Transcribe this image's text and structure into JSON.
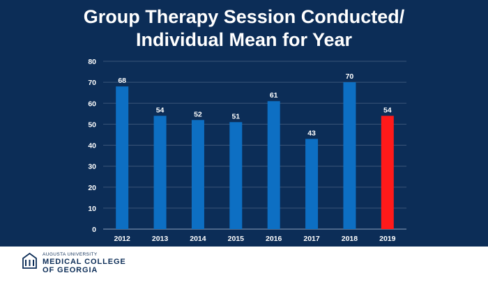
{
  "title": {
    "line1": "Group Therapy Session Conducted/",
    "line2": "Individual Mean for Year"
  },
  "chart_data": {
    "type": "bar",
    "title": "Group Therapy Session Conducted/ Individual Mean for Year",
    "categories": [
      "2012",
      "2013",
      "2014",
      "2015",
      "2016",
      "2017",
      "2018",
      "2019"
    ],
    "values": [
      68,
      54,
      52,
      51,
      61,
      43,
      70,
      54
    ],
    "ylim": [
      0,
      80
    ],
    "yticks": [
      0,
      10,
      20,
      30,
      40,
      50,
      60,
      70,
      80
    ],
    "xlabel": "",
    "ylabel": "",
    "grid": true,
    "colors": {
      "default": "#0d6fc3",
      "highlight": "#ff1a1a",
      "highlight_index": 7,
      "text": "#ffffff",
      "grid": "#3a5578"
    }
  },
  "footer": {
    "university": "AUGUSTA UNIVERSITY",
    "college_line1": "MEDICAL COLLEGE",
    "college_line2": "OF GEORGIA",
    "logo_icon": "building-columns-icon"
  }
}
